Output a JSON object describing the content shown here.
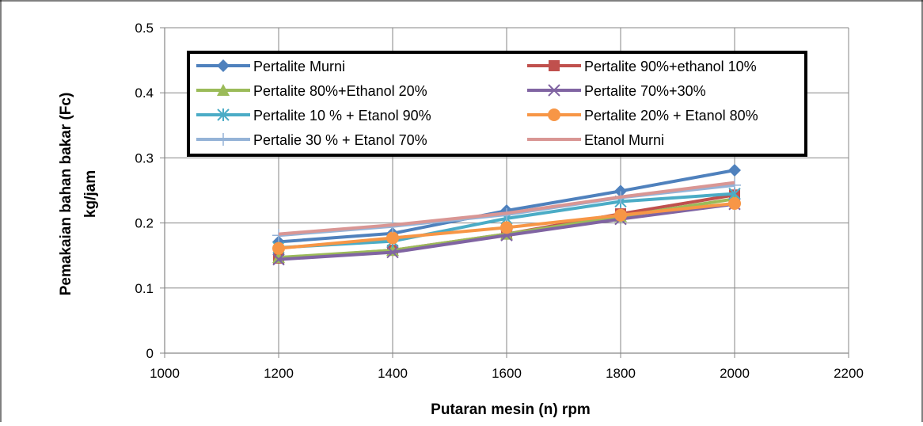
{
  "chart_data": {
    "type": "line",
    "title": "",
    "xlabel": "Putaran mesin (n) rpm",
    "ylabel_line1": "Pemakaian  bahan bakar (Fc)",
    "ylabel_line2": "kg/jam",
    "xlim": [
      1000,
      2200
    ],
    "ylim": [
      0,
      0.5
    ],
    "xticks": [
      1000,
      1200,
      1400,
      1600,
      1800,
      2000,
      2200
    ],
    "xtick_labels": [
      "1000",
      "1200",
      "1400",
      "1600",
      "1800",
      "2000",
      "2200"
    ],
    "yticks": [
      0,
      0.1,
      0.2,
      0.3,
      0.4,
      0.5
    ],
    "ytick_labels": [
      "0",
      "0.1",
      "0.2",
      "0.3",
      "0.4",
      "0.5"
    ],
    "grid": true,
    "legend_position": "top",
    "x": [
      1200,
      1400,
      1600,
      1800,
      2000
    ],
    "series": [
      {
        "name": "Pertalite Murni",
        "values": [
          0.171,
          0.184,
          0.219,
          0.249,
          0.281
        ],
        "color": "#4F81BD",
        "marker": "diamond"
      },
      {
        "name": "Pertalite 90%+ethanol 10%",
        "values": [
          0.146,
          0.158,
          0.183,
          0.214,
          0.243
        ],
        "color": "#C0504D",
        "marker": "square"
      },
      {
        "name": "Pertalite 80%+Ethanol 20%",
        "values": [
          0.147,
          0.158,
          0.183,
          0.21,
          0.237
        ],
        "color": "#9BBB59",
        "marker": "triangle"
      },
      {
        "name": "Pertalite 70%+30%",
        "values": [
          0.144,
          0.155,
          0.181,
          0.206,
          0.229
        ],
        "color": "#8064A2",
        "marker": "x"
      },
      {
        "name": "Pertalite 10 % + Etanol 90%",
        "values": [
          0.162,
          0.172,
          0.207,
          0.233,
          0.245
        ],
        "color": "#4BACC6",
        "marker": "star"
      },
      {
        "name": "Pertalite 20% + Etanol 80%",
        "values": [
          0.161,
          0.177,
          0.193,
          0.212,
          0.23
        ],
        "color": "#F79646",
        "marker": "circle"
      },
      {
        "name": "Pertalie 30 % + Etanol 70%",
        "values": [
          0.181,
          0.195,
          0.213,
          0.239,
          0.258
        ],
        "color": "#95B3D7",
        "marker": "plus"
      },
      {
        "name": "Etanol Murni",
        "values": [
          0.183,
          0.197,
          0.215,
          0.24,
          0.262
        ],
        "color": "#D99694",
        "marker": "none"
      }
    ]
  }
}
